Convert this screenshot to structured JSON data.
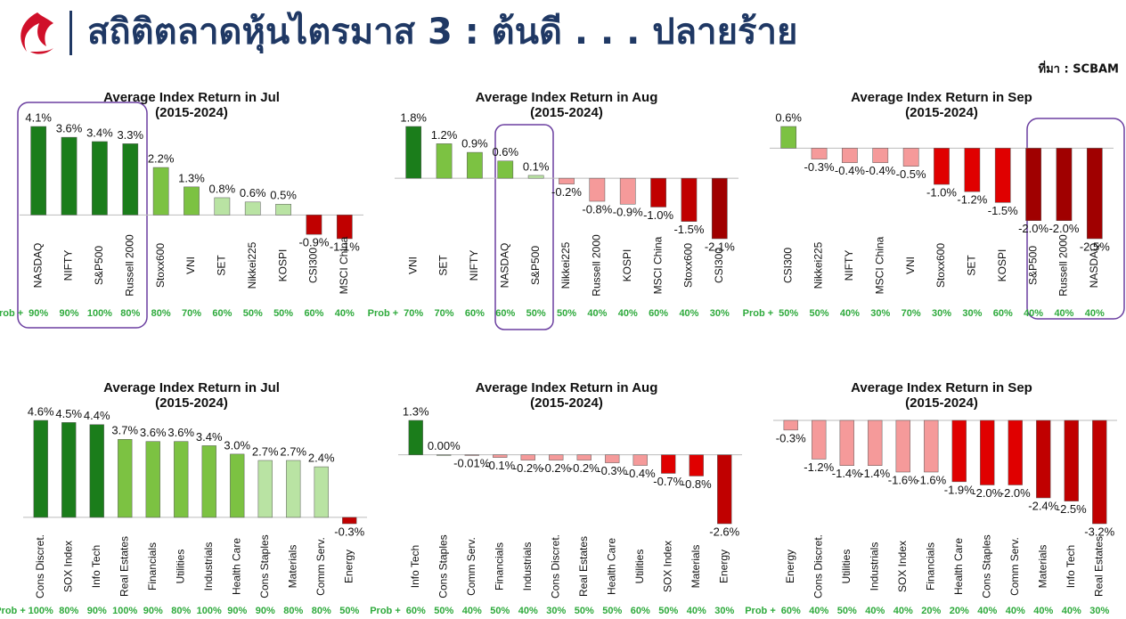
{
  "header": {
    "title": "สถิติตลาดหุ้นไตรมาส 3 : ต้นดี . . . ปลายร้าย",
    "source": "ที่มา : SCBAM"
  },
  "chart_data": [
    {
      "type": "bar",
      "title": "Average Index Return in Jul",
      "subtitle": "(2015-2024)",
      "categories": [
        "NASDAQ",
        "NIFTY",
        "S&P500",
        "Russell 2000",
        "Stoxx600",
        "VNI",
        "SET",
        "Nikkei225",
        "KOSPI",
        "CSI300",
        "MSCI China"
      ],
      "values": [
        4.1,
        3.6,
        3.4,
        3.3,
        2.2,
        1.3,
        0.8,
        0.6,
        0.5,
        -0.9,
        -1.1
      ],
      "value_labels": [
        "4.1%",
        "3.6%",
        "3.4%",
        "3.3%",
        "2.2%",
        "1.3%",
        "0.8%",
        "0.6%",
        "0.5%",
        "-0.9%",
        "-1.1%"
      ],
      "colors": [
        "#1b7d1b",
        "#1b7d1b",
        "#1b7d1b",
        "#1b7d1b",
        "#7cc242",
        "#7cc242",
        "#b9e3a3",
        "#b9e3a3",
        "#b9e3a3",
        "#c00000",
        "#c00000"
      ],
      "prob_label": "Prob +",
      "probs": [
        "90%",
        "90%",
        "100%",
        "80%",
        "80%",
        "70%",
        "60%",
        "50%",
        "50%",
        "60%",
        "40%"
      ]
    },
    {
      "type": "bar",
      "title": "Average Index Return in Aug",
      "subtitle": "(2015-2024)",
      "categories": [
        "VNI",
        "SET",
        "NIFTY",
        "NASDAQ",
        "S&P500",
        "Nikkei225",
        "Russell 2000",
        "KOSPI",
        "MSCI China",
        "Stoxx600",
        "CSI300"
      ],
      "values": [
        1.8,
        1.2,
        0.9,
        0.6,
        0.1,
        -0.2,
        -0.8,
        -0.9,
        -1.0,
        -1.5,
        -2.1
      ],
      "value_labels": [
        "1.8%",
        "1.2%",
        "0.9%",
        "0.6%",
        "0.1%",
        "-0.2%",
        "-0.8%",
        "-0.9%",
        "-1.0%",
        "-1.5%",
        "-2.1%"
      ],
      "colors": [
        "#1b7d1b",
        "#7cc242",
        "#7cc242",
        "#7cc242",
        "#b9e3a3",
        "#f59a9a",
        "#f59a9a",
        "#f59a9a",
        "#c00000",
        "#c00000",
        "#a00000"
      ],
      "prob_label": "Prob +",
      "probs": [
        "70%",
        "70%",
        "60%",
        "60%",
        "50%",
        "50%",
        "40%",
        "40%",
        "60%",
        "40%",
        "30%"
      ]
    },
    {
      "type": "bar",
      "title": "Average Index Return in Sep",
      "subtitle": "(2015-2024)",
      "categories": [
        "CSI300",
        "Nikkei225",
        "NIFTY",
        "MSCI China",
        "VNI",
        "Stoxx600",
        "SET",
        "KOSPI",
        "S&P500",
        "Russell 2000",
        "NASDAQ"
      ],
      "values": [
        0.6,
        -0.3,
        -0.4,
        -0.4,
        -0.5,
        -1.0,
        -1.2,
        -1.5,
        -2.0,
        -2.0,
        -2.5
      ],
      "value_labels": [
        "0.6%",
        "-0.3%",
        "-0.4%",
        "-0.4%",
        "-0.5%",
        "-1.0%",
        "-1.2%",
        "-1.5%",
        "-2.0%",
        "-2.0%",
        "-2.5%"
      ],
      "colors": [
        "#7cc242",
        "#f59a9a",
        "#f59a9a",
        "#f59a9a",
        "#f59a9a",
        "#e00000",
        "#e00000",
        "#e00000",
        "#a00000",
        "#a00000",
        "#a00000"
      ],
      "prob_label": "Prob +",
      "probs": [
        "50%",
        "50%",
        "40%",
        "30%",
        "70%",
        "30%",
        "30%",
        "60%",
        "40%",
        "40%",
        "40%"
      ]
    },
    {
      "type": "bar",
      "title": "Average Index Return in Jul",
      "subtitle": "(2015-2024)",
      "categories": [
        "Cons Discret.",
        "SOX Index",
        "Info Tech",
        "Real Estates",
        "Financials",
        "Utilities",
        "Industrials",
        "Health Care",
        "Cons Staples",
        "Materials",
        "Comm Serv.",
        "Energy"
      ],
      "values": [
        4.6,
        4.5,
        4.4,
        3.7,
        3.6,
        3.6,
        3.4,
        3.0,
        2.7,
        2.7,
        2.4,
        -0.3
      ],
      "value_labels": [
        "4.6%",
        "4.5%",
        "4.4%",
        "3.7%",
        "3.6%",
        "3.6%",
        "3.4%",
        "3.0%",
        "2.7%",
        "2.7%",
        "2.4%",
        "-0.3%"
      ],
      "colors": [
        "#1b7d1b",
        "#1b7d1b",
        "#1b7d1b",
        "#7cc242",
        "#7cc242",
        "#7cc242",
        "#7cc242",
        "#7cc242",
        "#b9e3a3",
        "#b9e3a3",
        "#b9e3a3",
        "#c00000"
      ],
      "prob_label": "Prob +",
      "probs": [
        "100%",
        "80%",
        "90%",
        "100%",
        "90%",
        "80%",
        "100%",
        "90%",
        "90%",
        "80%",
        "80%",
        "50%"
      ]
    },
    {
      "type": "bar",
      "title": "Average Index Return in Aug",
      "subtitle": "(2015-2024)",
      "categories": [
        "Info Tech",
        "Cons Staples",
        "Comm Serv.",
        "Financials",
        "Industrials",
        "Cons Discret.",
        "Real Estates",
        "Health Care",
        "Utilities",
        "SOX Index",
        "Materials",
        "Energy"
      ],
      "values": [
        1.3,
        0.0,
        -0.01,
        -0.1,
        -0.2,
        -0.2,
        -0.2,
        -0.3,
        -0.4,
        -0.7,
        -0.8,
        -2.6
      ],
      "value_labels": [
        "1.3%",
        "0.00%",
        "-0.01%",
        "-0.1%",
        "-0.2%",
        "-0.2%",
        "-0.2%",
        "-0.3%",
        "-0.4%",
        "-0.7%",
        "-0.8%",
        "-2.6%"
      ],
      "colors": [
        "#1b7d1b",
        "#b9e3a3",
        "#f59a9a",
        "#f59a9a",
        "#f59a9a",
        "#f59a9a",
        "#f59a9a",
        "#f59a9a",
        "#f59a9a",
        "#e00000",
        "#e00000",
        "#c00000"
      ],
      "prob_label": "Prob +",
      "probs": [
        "60%",
        "50%",
        "40%",
        "50%",
        "40%",
        "30%",
        "50%",
        "50%",
        "60%",
        "50%",
        "40%",
        "30%"
      ]
    },
    {
      "type": "bar",
      "title": "Average Index Return in Sep",
      "subtitle": "(2015-2024)",
      "categories": [
        "Energy",
        "Cons Discret.",
        "Utilities",
        "Industrials",
        "SOX Index",
        "Financials",
        "Health Care",
        "Cons Staples",
        "Comm Serv.",
        "Materials",
        "Info Tech",
        "Real Estates"
      ],
      "values": [
        -0.3,
        -1.2,
        -1.4,
        -1.4,
        -1.6,
        -1.6,
        -1.9,
        -2.0,
        -2.0,
        -2.4,
        -2.5,
        -3.2
      ],
      "value_labels": [
        "-0.3%",
        "-1.2%",
        "-1.4%",
        "-1.4%",
        "-1.6%",
        "-1.6%",
        "-1.9%",
        "-2.0%",
        "-2.0%",
        "-2.4%",
        "-2.5%",
        "-3.2%"
      ],
      "colors": [
        "#f59a9a",
        "#f59a9a",
        "#f59a9a",
        "#f59a9a",
        "#f59a9a",
        "#f59a9a",
        "#e00000",
        "#e00000",
        "#e00000",
        "#c00000",
        "#c00000",
        "#c00000"
      ],
      "prob_label": "Prob +",
      "probs": [
        "60%",
        "40%",
        "50%",
        "40%",
        "40%",
        "20%",
        "20%",
        "40%",
        "40%",
        "40%",
        "40%",
        "30%"
      ]
    }
  ]
}
